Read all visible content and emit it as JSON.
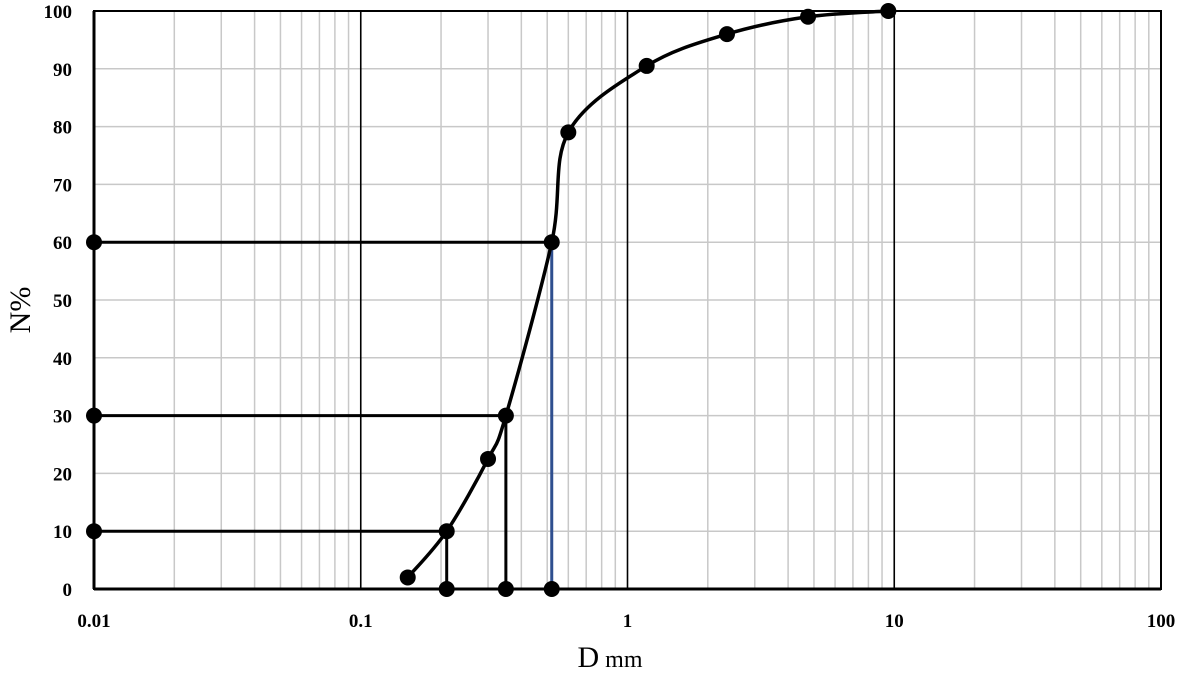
{
  "chart_data": {
    "type": "scatter",
    "xlabel": "D",
    "xlabel_unit": "mm",
    "ylabel": "N%",
    "x_scale": "log",
    "xlim": [
      0.01,
      100
    ],
    "ylim": [
      0,
      100
    ],
    "x_tick_labels": [
      "0.01",
      "0.1",
      "1",
      "10",
      "100"
    ],
    "y_tick_labels": [
      "0",
      "10",
      "20",
      "30",
      "40",
      "50",
      "60",
      "70",
      "80",
      "90",
      "100"
    ],
    "grid": "major and minor (log)",
    "colors": {
      "curve": "#000000",
      "grid_minor": "#c8c8c8",
      "grid_major": "#000000",
      "d60_drop": "#2f4f8f"
    },
    "series": [
      {
        "values": [
          {
            "x": 0.15,
            "y": 2
          },
          {
            "x": 0.21,
            "y": 10
          },
          {
            "x": 0.3,
            "y": 22.5
          },
          {
            "x": 0.35,
            "y": 30
          },
          {
            "x": 0.52,
            "y": 60
          },
          {
            "x": 0.6,
            "y": 79
          },
          {
            "x": 1.18,
            "y": 90.5
          },
          {
            "x": 2.36,
            "y": 96
          },
          {
            "x": 4.75,
            "y": 99
          },
          {
            "x": 9.5,
            "y": 100
          }
        ]
      }
    ],
    "construction_lines": [
      {
        "y": 10,
        "x": 0.21
      },
      {
        "y": 30,
        "x": 0.35
      },
      {
        "y": 60,
        "x": 0.52
      }
    ]
  }
}
